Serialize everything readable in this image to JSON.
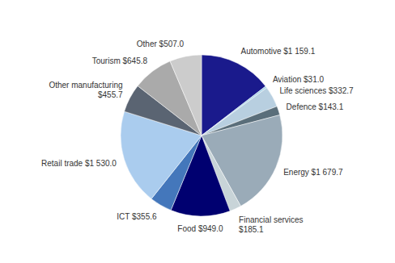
{
  "chart_data": {
    "type": "pie",
    "categories": [
      "Automotive $1 159.1",
      "Aviation $31.0",
      "Life sciences $332.7",
      "Defence $143.1",
      "Energy $1 679.7",
      "Financial services\n$185.1",
      "Food $949.0",
      "ICT $355.6",
      "Retail trade $1 530.0",
      "Other manufacturing\n$455.7",
      "Tourism $645.8",
      "Other $507.0"
    ],
    "values": [
      1159.1,
      31.0,
      332.7,
      143.1,
      1679.7,
      185.1,
      949.0,
      355.6,
      1530.0,
      455.7,
      645.8,
      507.0
    ],
    "colors": [
      "#1a1a8c",
      "#a8d4e8",
      "#b8cfe0",
      "#5a6e7a",
      "#9aabb8",
      "#c8d4d8",
      "#000070",
      "#4477bb",
      "#aaccee",
      "#5a6472",
      "#aaaaaa",
      "#cccccc"
    ]
  }
}
